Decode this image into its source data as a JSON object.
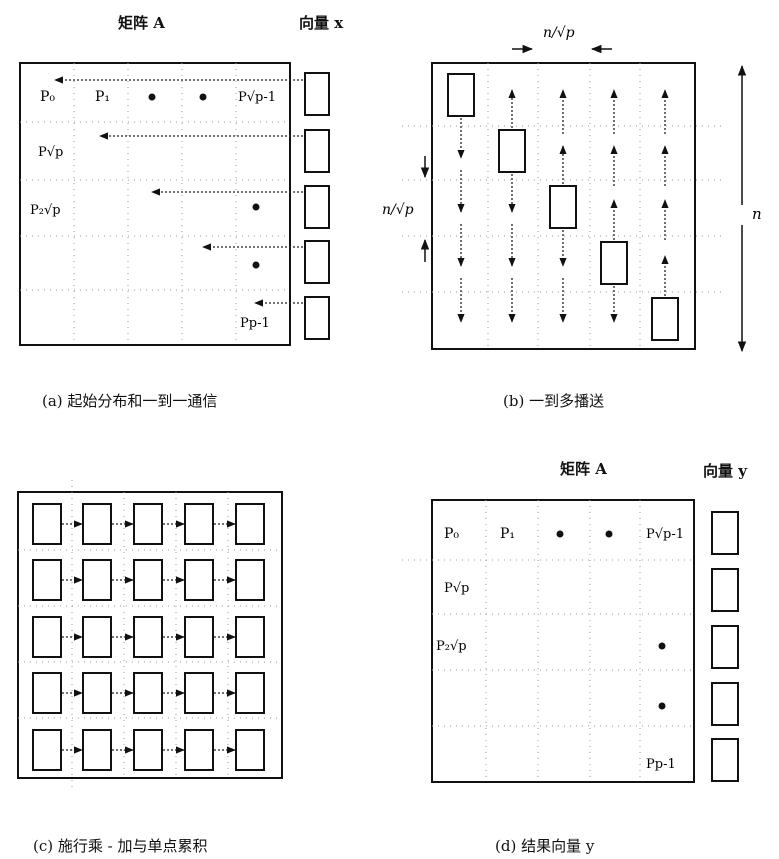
{
  "panel_a": {
    "title_matrix": "矩阵 A",
    "title_vector": "向量 x",
    "labels": {
      "p0": "P₀",
      "p1": "P₁",
      "psqrt_minus1": "P√p-1",
      "psqrt": "P√p",
      "p2sqrt": "P₂√p",
      "pminus1": "Pp-1"
    },
    "caption": "(a) 起始分布和一到一通信"
  },
  "panel_b": {
    "label_top": "n/√p",
    "label_left": "n/√p",
    "label_right": "n",
    "caption": "(b) 一到多播送"
  },
  "panel_c": {
    "caption": "(c) 施行乘 - 加与单点累积"
  },
  "panel_d": {
    "title_matrix": "矩阵 A",
    "title_vector": "向量 y",
    "labels": {
      "p0": "P₀",
      "p1": "P₁",
      "psqrt_minus1": "P√p-1",
      "psqrt": "P√p",
      "p2sqrt": "P₂√p",
      "pminus1": "Pp-1"
    },
    "caption": "(d) 结果向量 y"
  },
  "colors": {
    "ink": "#111111",
    "dotted": "#222222",
    "background": "#ffffff"
  }
}
